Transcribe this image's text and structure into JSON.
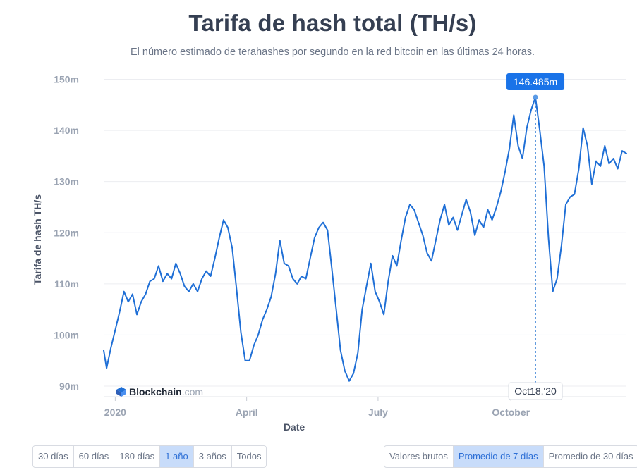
{
  "header": {
    "title": "Tarifa de hash total (TH/s)",
    "subtitle": "El número estimado de terahashes por segundo en la red bitcoin en las últimas 24 horas."
  },
  "watermark": {
    "brand": "Blockchain",
    "suffix": ".com"
  },
  "tooltip": {
    "value_label": "146.485m",
    "date_label": "Oct18,'20"
  },
  "range_buttons": [
    {
      "label": "30 días",
      "active": false
    },
    {
      "label": "60 días",
      "active": false
    },
    {
      "label": "180 días",
      "active": false
    },
    {
      "label": "1 año",
      "active": true
    },
    {
      "label": "3 años",
      "active": false
    },
    {
      "label": "Todos",
      "active": false
    }
  ],
  "average_buttons": [
    {
      "label": "Valores brutos",
      "active": false
    },
    {
      "label": "Promedio de 7 días",
      "active": true
    },
    {
      "label": "Promedio de 30 días",
      "active": false
    }
  ],
  "colors": {
    "line": "#1f6fd6",
    "accent": "#1a73e8",
    "button_active_bg": "#c8dcfa"
  },
  "chart_data": {
    "type": "line",
    "title": "Tarifa de hash total (TH/s)",
    "subtitle": "El número estimado de terahashes por segundo en la red bitcoin en las últimas 24 horas.",
    "xlabel": "Date",
    "ylabel": "Tarifa de hash TH/s",
    "ylim": [
      90,
      152
    ],
    "xlim": [
      "2019-12-24",
      "2020-12-20"
    ],
    "y_ticks": [
      {
        "value": 90,
        "label": "90m"
      },
      {
        "value": 100,
        "label": "100m"
      },
      {
        "value": 110,
        "label": "110m"
      },
      {
        "value": 120,
        "label": "120m"
      },
      {
        "value": 130,
        "label": "130m"
      },
      {
        "value": 140,
        "label": "140m"
      },
      {
        "value": 150,
        "label": "150m"
      }
    ],
    "x_ticks": [
      {
        "date": "2020-01-01",
        "label": "2020"
      },
      {
        "date": "2020-04-01",
        "label": "April"
      },
      {
        "date": "2020-07-01",
        "label": "July"
      },
      {
        "date": "2020-10-01",
        "label": "October"
      }
    ],
    "highlight": {
      "date": "2020-10-18",
      "value": 146.485
    },
    "grid": true,
    "series": [
      {
        "points": [
          [
            "2019-12-24",
            97.0
          ],
          [
            "2019-12-26",
            93.5
          ],
          [
            "2019-12-29",
            97.5
          ],
          [
            "2020-01-01",
            101.0
          ],
          [
            "2020-01-04",
            104.5
          ],
          [
            "2020-01-07",
            108.5
          ],
          [
            "2020-01-10",
            106.5
          ],
          [
            "2020-01-13",
            108.0
          ],
          [
            "2020-01-16",
            104.0
          ],
          [
            "2020-01-19",
            106.5
          ],
          [
            "2020-01-22",
            108.0
          ],
          [
            "2020-01-25",
            110.5
          ],
          [
            "2020-01-28",
            111.0
          ],
          [
            "2020-01-31",
            113.5
          ],
          [
            "2020-02-03",
            110.5
          ],
          [
            "2020-02-06",
            112.0
          ],
          [
            "2020-02-09",
            111.0
          ],
          [
            "2020-02-12",
            114.0
          ],
          [
            "2020-02-15",
            112.0
          ],
          [
            "2020-02-18",
            109.5
          ],
          [
            "2020-02-21",
            108.5
          ],
          [
            "2020-02-24",
            110.0
          ],
          [
            "2020-02-27",
            108.5
          ],
          [
            "2020-03-01",
            111.0
          ],
          [
            "2020-03-04",
            112.5
          ],
          [
            "2020-03-07",
            111.5
          ],
          [
            "2020-03-10",
            115.0
          ],
          [
            "2020-03-13",
            119.0
          ],
          [
            "2020-03-16",
            122.5
          ],
          [
            "2020-03-19",
            121.0
          ],
          [
            "2020-03-22",
            117.0
          ],
          [
            "2020-03-25",
            109.0
          ],
          [
            "2020-03-28",
            100.5
          ],
          [
            "2020-03-31",
            95.0
          ],
          [
            "2020-04-03",
            95.0
          ],
          [
            "2020-04-06",
            98.0
          ],
          [
            "2020-04-09",
            100.0
          ],
          [
            "2020-04-12",
            103.0
          ],
          [
            "2020-04-15",
            105.0
          ],
          [
            "2020-04-18",
            107.5
          ],
          [
            "2020-04-21",
            112.0
          ],
          [
            "2020-04-24",
            118.5
          ],
          [
            "2020-04-27",
            114.0
          ],
          [
            "2020-04-30",
            113.5
          ],
          [
            "2020-05-03",
            111.0
          ],
          [
            "2020-05-06",
            110.0
          ],
          [
            "2020-05-09",
            111.5
          ],
          [
            "2020-05-12",
            111.0
          ],
          [
            "2020-05-15",
            115.0
          ],
          [
            "2020-05-18",
            119.0
          ],
          [
            "2020-05-21",
            121.0
          ],
          [
            "2020-05-24",
            122.0
          ],
          [
            "2020-05-27",
            120.5
          ],
          [
            "2020-05-30",
            113.0
          ],
          [
            "2020-06-02",
            105.0
          ],
          [
            "2020-06-05",
            97.0
          ],
          [
            "2020-06-08",
            93.0
          ],
          [
            "2020-06-11",
            91.0
          ],
          [
            "2020-06-14",
            92.5
          ],
          [
            "2020-06-17",
            96.5
          ],
          [
            "2020-06-20",
            105.0
          ],
          [
            "2020-06-23",
            109.5
          ],
          [
            "2020-06-26",
            114.0
          ],
          [
            "2020-06-29",
            108.5
          ],
          [
            "2020-07-02",
            106.5
          ],
          [
            "2020-07-05",
            104.0
          ],
          [
            "2020-07-08",
            110.5
          ],
          [
            "2020-07-11",
            115.5
          ],
          [
            "2020-07-14",
            113.5
          ],
          [
            "2020-07-17",
            118.5
          ],
          [
            "2020-07-20",
            123.0
          ],
          [
            "2020-07-23",
            125.5
          ],
          [
            "2020-07-26",
            124.5
          ],
          [
            "2020-07-29",
            122.0
          ],
          [
            "2020-08-01",
            119.5
          ],
          [
            "2020-08-04",
            116.0
          ],
          [
            "2020-08-07",
            114.5
          ],
          [
            "2020-08-10",
            118.5
          ],
          [
            "2020-08-13",
            122.5
          ],
          [
            "2020-08-16",
            125.5
          ],
          [
            "2020-08-19",
            121.5
          ],
          [
            "2020-08-22",
            123.0
          ],
          [
            "2020-08-25",
            120.5
          ],
          [
            "2020-08-28",
            123.5
          ],
          [
            "2020-08-31",
            126.5
          ],
          [
            "2020-09-03",
            124.0
          ],
          [
            "2020-09-06",
            119.5
          ],
          [
            "2020-09-09",
            122.5
          ],
          [
            "2020-09-12",
            121.0
          ],
          [
            "2020-09-15",
            124.5
          ],
          [
            "2020-09-18",
            122.5
          ],
          [
            "2020-09-21",
            125.0
          ],
          [
            "2020-09-24",
            128.0
          ],
          [
            "2020-09-27",
            132.0
          ],
          [
            "2020-09-30",
            136.5
          ],
          [
            "2020-10-03",
            143.0
          ],
          [
            "2020-10-06",
            137.0
          ],
          [
            "2020-10-09",
            134.5
          ],
          [
            "2020-10-12",
            140.5
          ],
          [
            "2020-10-15",
            144.0
          ],
          [
            "2020-10-18",
            146.485
          ],
          [
            "2020-10-21",
            140.0
          ],
          [
            "2020-10-24",
            133.0
          ],
          [
            "2020-10-27",
            119.0
          ],
          [
            "2020-10-30",
            108.5
          ],
          [
            "2020-11-02",
            111.0
          ],
          [
            "2020-11-05",
            117.5
          ],
          [
            "2020-11-08",
            125.5
          ],
          [
            "2020-11-11",
            127.0
          ],
          [
            "2020-11-14",
            127.5
          ],
          [
            "2020-11-17",
            132.5
          ],
          [
            "2020-11-20",
            140.5
          ],
          [
            "2020-11-23",
            137.0
          ],
          [
            "2020-11-26",
            129.5
          ],
          [
            "2020-11-29",
            134.0
          ],
          [
            "2020-12-02",
            133.0
          ],
          [
            "2020-12-05",
            137.0
          ],
          [
            "2020-12-08",
            133.5
          ],
          [
            "2020-12-11",
            134.5
          ],
          [
            "2020-12-14",
            132.5
          ],
          [
            "2020-12-17",
            136.0
          ],
          [
            "2020-12-20",
            135.5
          ]
        ]
      }
    ]
  }
}
